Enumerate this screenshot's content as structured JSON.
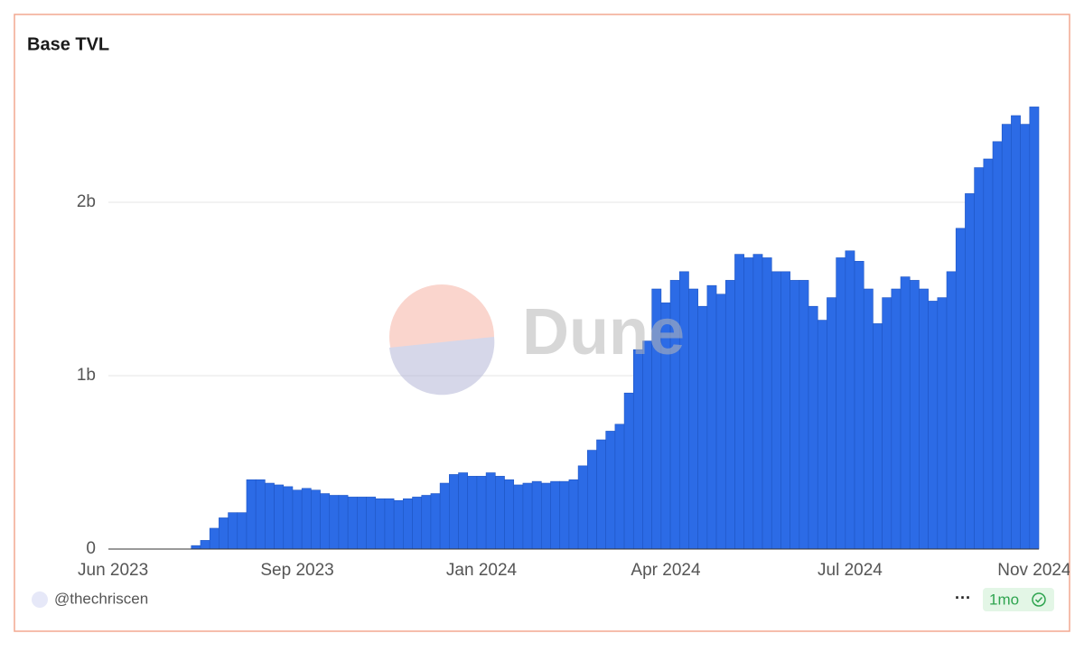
{
  "chart_data": {
    "type": "bar",
    "title": "Base TVL",
    "categories": [
      "Jun 2023",
      null,
      null,
      null,
      null,
      null,
      null,
      null,
      null,
      null,
      null,
      null,
      null,
      null,
      null,
      null,
      null,
      null,
      null,
      null,
      "Sep 2023",
      null,
      null,
      null,
      null,
      null,
      null,
      null,
      null,
      null,
      null,
      null,
      null,
      null,
      null,
      null,
      null,
      null,
      null,
      null,
      "Jan 2024",
      null,
      null,
      null,
      null,
      null,
      null,
      null,
      null,
      null,
      null,
      null,
      null,
      null,
      null,
      null,
      null,
      null,
      null,
      null,
      "Apr 2024",
      null,
      null,
      null,
      null,
      null,
      null,
      null,
      null,
      null,
      null,
      null,
      null,
      null,
      null,
      null,
      null,
      null,
      null,
      null,
      "Jul 2024",
      null,
      null,
      null,
      null,
      null,
      null,
      null,
      null,
      null,
      null,
      null,
      null,
      null,
      null,
      null,
      null,
      null,
      null,
      null,
      "Nov 2024"
    ],
    "values": [
      0,
      0,
      0,
      0,
      0,
      0,
      0,
      0,
      0,
      0.02,
      0.05,
      0.12,
      0.18,
      0.21,
      0.21,
      0.4,
      0.4,
      0.38,
      0.37,
      0.36,
      0.34,
      0.35,
      0.34,
      0.32,
      0.31,
      0.31,
      0.3,
      0.3,
      0.3,
      0.29,
      0.29,
      0.28,
      0.29,
      0.3,
      0.31,
      0.32,
      0.38,
      0.43,
      0.44,
      0.42,
      0.42,
      0.44,
      0.42,
      0.4,
      0.37,
      0.38,
      0.39,
      0.38,
      0.39,
      0.39,
      0.4,
      0.48,
      0.57,
      0.63,
      0.68,
      0.72,
      0.9,
      1.15,
      1.2,
      1.5,
      1.42,
      1.55,
      1.6,
      1.5,
      1.4,
      1.52,
      1.47,
      1.55,
      1.7,
      1.68,
      1.7,
      1.68,
      1.6,
      1.6,
      1.55,
      1.55,
      1.4,
      1.32,
      1.45,
      1.68,
      1.72,
      1.66,
      1.5,
      1.3,
      1.45,
      1.5,
      1.57,
      1.55,
      1.5,
      1.43,
      1.45,
      1.6,
      1.85,
      2.05,
      2.2,
      2.25,
      2.35,
      2.45,
      2.5,
      2.45,
      2.55
    ],
    "color": "#2c6be6",
    "ylim": [
      0,
      2.75
    ],
    "yticks": [
      0,
      {
        "value": 1,
        "label": "1b"
      },
      {
        "value": 2,
        "label": "2b"
      }
    ],
    "grid": true
  },
  "watermark": "Dune",
  "footer": {
    "author": "@thechriscen",
    "menu": "···",
    "age": "1mo"
  }
}
